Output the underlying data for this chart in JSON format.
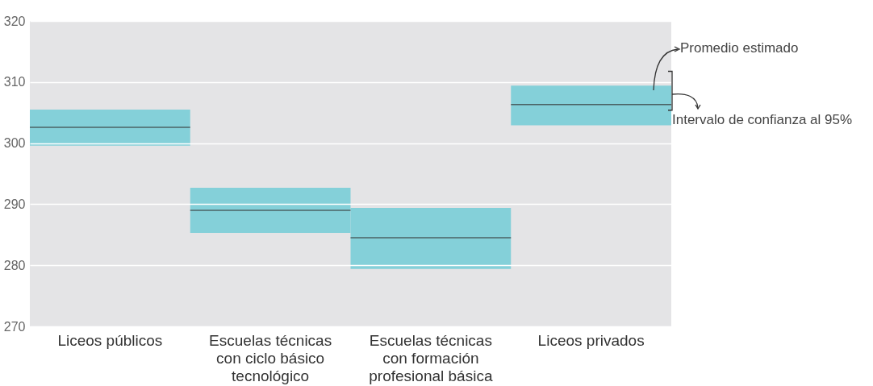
{
  "chart_data": {
    "type": "box",
    "categories": [
      "Liceos públicos",
      "Escuelas técnicas con ciclo básico tecnológico",
      "Escuelas técnicas con formación profesional básica",
      "Liceos privados"
    ],
    "series": [
      {
        "color": "#84d0d9",
        "boxes": [
          {
            "low": 299.6,
            "q1": 299.6,
            "median": 302.6,
            "q3": 305.5,
            "high": 305.5
          },
          {
            "low": 285.3,
            "q1": 285.3,
            "median": 289.0,
            "q3": 292.7,
            "high": 292.7
          },
          {
            "low": 279.4,
            "q1": 279.4,
            "median": 284.5,
            "q3": 289.4,
            "high": 289.4
          },
          {
            "low": 302.9,
            "q1": 302.9,
            "median": 306.3,
            "q3": 309.4,
            "high": 309.4
          }
        ]
      }
    ],
    "ylim": [
      270,
      320
    ],
    "yticks": [
      270,
      280,
      290,
      300,
      310,
      320
    ],
    "grid": "y",
    "annotations": [
      "Promedio estimado",
      "Intervalo de confianza al 95%"
    ]
  }
}
